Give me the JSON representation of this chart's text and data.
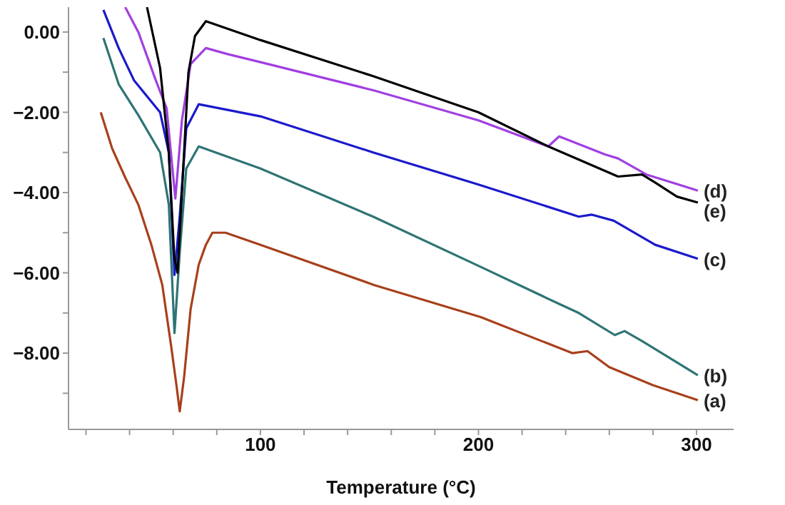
{
  "chart_data": {
    "type": "line",
    "xlabel": "Temperature (°C)",
    "xlim": [
      12,
      317
    ],
    "xticks": [
      {
        "value": 20,
        "label": null
      },
      {
        "value": 40,
        "label": null
      },
      {
        "value": 60,
        "label": null
      },
      {
        "value": 80,
        "label": null
      },
      100,
      {
        "value": 120,
        "label": null
      },
      {
        "value": 140,
        "label": null
      },
      {
        "value": 160,
        "label": null
      },
      {
        "value": 180,
        "label": null
      },
      200,
      {
        "value": 220,
        "label": null
      },
      {
        "value": 240,
        "label": null
      },
      {
        "value": 260,
        "label": null
      },
      {
        "value": 280,
        "label": null
      },
      300
    ],
    "ylim": [
      -9.9,
      0.62
    ],
    "yticks": [
      {
        "value": -9,
        "label": null
      },
      {
        "value": -8,
        "label": "−8.00"
      },
      {
        "value": -7,
        "label": null
      },
      {
        "value": -6,
        "label": "−6.00"
      },
      {
        "value": -5,
        "label": null
      },
      {
        "value": -4,
        "label": "−4.00"
      },
      {
        "value": -3,
        "label": null
      },
      {
        "value": -2,
        "label": "−2.00"
      },
      {
        "value": -1,
        "label": null
      },
      {
        "value": 0,
        "label": "0.00"
      }
    ],
    "grid": false,
    "legend": false,
    "marker": "none",
    "line_style": "solid",
    "series": [
      {
        "name": "(a)",
        "color": "#a8401c",
        "x": [
          26.8,
          32,
          37.8,
          44,
          50,
          55,
          59,
          61.5,
          63,
          65,
          68,
          71.7,
          75,
          78,
          84,
          100,
          152,
          201,
          243,
          250,
          260,
          280,
          300.6
        ],
        "values": [
          -2.0,
          -2.9,
          -3.6,
          -4.3,
          -5.3,
          -6.3,
          -7.8,
          -8.8,
          -9.45,
          -8.6,
          -6.9,
          -5.8,
          -5.3,
          -5.0,
          -5.0,
          -5.3,
          -6.3,
          -7.1,
          -8.0,
          -7.95,
          -8.35,
          -8.8,
          -9.17
        ]
      },
      {
        "name": "(b)",
        "color": "#2f7474",
        "x": [
          28,
          35,
          44,
          54,
          58,
          60.6,
          63,
          66,
          71.7,
          100,
          151.7,
          201,
          238,
          246,
          262.5,
          267,
          275,
          300.6
        ],
        "values": [
          -0.15,
          -1.3,
          -2.07,
          -3.0,
          -4.3,
          -7.5,
          -5.5,
          -3.4,
          -2.85,
          -3.4,
          -4.6,
          -5.85,
          -6.8,
          -7.0,
          -7.55,
          -7.45,
          -7.7,
          -8.55
        ]
      },
      {
        "name": "(c)",
        "color": "#1a1acc",
        "x": [
          28,
          35,
          42,
          54,
          58,
          60.6,
          63,
          66,
          71.7,
          100,
          151.7,
          200,
          246,
          252,
          262,
          281,
          300.6
        ],
        "values": [
          0.55,
          -0.4,
          -1.2,
          -2.0,
          -3.0,
          -6.05,
          -4.6,
          -2.4,
          -1.8,
          -2.1,
          -3.0,
          -3.8,
          -4.6,
          -4.55,
          -4.7,
          -5.3,
          -5.65
        ]
      },
      {
        "name": "(d)",
        "color": "#a040e0",
        "x": [
          38,
          44,
          52,
          57,
          61,
          64,
          68,
          75,
          85,
          100,
          151.7,
          200,
          232,
          237,
          258,
          264,
          277,
          300.6
        ],
        "values": [
          0.62,
          0.0,
          -1.2,
          -1.9,
          -4.15,
          -2.2,
          -0.8,
          -0.4,
          -0.55,
          -0.75,
          -1.45,
          -2.2,
          -2.85,
          -2.6,
          -3.05,
          -3.15,
          -3.55,
          -3.95
        ]
      },
      {
        "name": "(e)",
        "color": "#000000",
        "x": [
          48,
          54,
          58,
          60.5,
          62,
          64,
          67,
          70,
          75,
          100,
          151.7,
          200,
          232,
          264,
          275,
          281,
          291,
          300.6
        ],
        "values": [
          0.62,
          -0.9,
          -3.0,
          -5.6,
          -6.0,
          -4.0,
          -1.0,
          -0.1,
          0.27,
          -0.2,
          -1.1,
          -2.0,
          -2.85,
          -3.6,
          -3.55,
          -3.75,
          -4.1,
          -4.25
        ]
      }
    ]
  }
}
